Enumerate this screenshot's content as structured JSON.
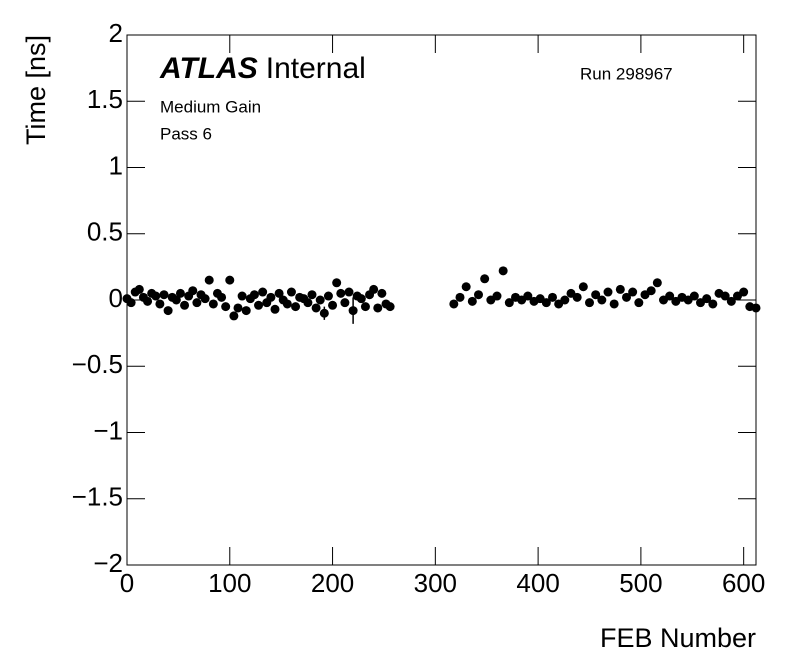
{
  "chart_data": {
    "type": "scatter",
    "title": "ATLAS",
    "subtitle": "Internal",
    "annotations": [
      "Run 298967",
      "Medium Gain",
      "Pass 6"
    ],
    "xlabel": "FEB Number",
    "ylabel": "Time [ns]",
    "color": "#000000",
    "xlim": [
      0,
      612
    ],
    "ylim": [
      -2,
      2
    ],
    "xticks": [
      0,
      100,
      200,
      300,
      400,
      500,
      600
    ],
    "yticks": [
      {
        "value": -2,
        "label": "−2"
      },
      {
        "value": -1.5,
        "label": "−1.5"
      },
      {
        "value": -1,
        "label": "−1"
      },
      {
        "value": -0.5,
        "label": "−0.5"
      },
      0,
      0.5,
      1,
      1.5,
      2
    ],
    "x": [
      0,
      4,
      8,
      12,
      16,
      20,
      24,
      28,
      32,
      36,
      40,
      44,
      48,
      52,
      56,
      60,
      64,
      68,
      72,
      76,
      80,
      84,
      88,
      92,
      96,
      100,
      104,
      108,
      112,
      116,
      120,
      124,
      128,
      132,
      136,
      140,
      144,
      148,
      152,
      156,
      160,
      164,
      168,
      172,
      176,
      180,
      184,
      188,
      192,
      196,
      200,
      204,
      208,
      212,
      216,
      220,
      224,
      228,
      232,
      236,
      240,
      244,
      248,
      252,
      256,
      318,
      324,
      330,
      336,
      342,
      348,
      354,
      360,
      366,
      372,
      378,
      384,
      390,
      396,
      402,
      408,
      414,
      420,
      426,
      432,
      438,
      444,
      450,
      456,
      462,
      468,
      474,
      480,
      486,
      492,
      498,
      504,
      510,
      516,
      522,
      528,
      534,
      540,
      546,
      552,
      558,
      564,
      570,
      576,
      582,
      588,
      594,
      600,
      606,
      612
    ],
    "values": [
      0.01,
      -0.02,
      0.06,
      0.08,
      0.02,
      -0.01,
      0.05,
      0.03,
      -0.03,
      0.04,
      -0.08,
      0.02,
      0.0,
      0.05,
      -0.04,
      0.03,
      0.07,
      -0.02,
      0.04,
      0.01,
      0.15,
      -0.03,
      0.05,
      0.02,
      -0.05,
      0.15,
      -0.12,
      -0.06,
      0.03,
      -0.08,
      0.01,
      0.04,
      -0.04,
      0.06,
      -0.02,
      0.02,
      -0.07,
      0.05,
      0.0,
      -0.03,
      0.06,
      -0.05,
      0.02,
      0.01,
      -0.02,
      0.04,
      -0.06,
      0.0,
      -0.1,
      0.03,
      -0.04,
      0.13,
      0.05,
      -0.02,
      0.06,
      -0.08,
      0.03,
      0.01,
      -0.05,
      0.04,
      0.08,
      -0.06,
      0.05,
      -0.03,
      -0.05,
      -0.03,
      0.02,
      0.1,
      -0.01,
      0.04,
      0.16,
      0.0,
      0.03,
      0.22,
      -0.02,
      0.02,
      0.0,
      0.03,
      -0.01,
      0.01,
      -0.02,
      0.02,
      -0.03,
      0.0,
      0.05,
      0.02,
      0.1,
      -0.02,
      0.04,
      0.0,
      0.06,
      -0.03,
      0.08,
      0.02,
      0.06,
      -0.02,
      0.04,
      0.07,
      0.13,
      0.0,
      0.03,
      -0.01,
      0.02,
      0.0,
      0.03,
      -0.02,
      0.01,
      -0.03,
      0.05,
      0.03,
      -0.01,
      0.03,
      0.06,
      -0.05,
      -0.06
    ],
    "errors": [
      0.03,
      0.03,
      0.03,
      0.03,
      0.03,
      0.03,
      0.03,
      0.03,
      0.03,
      0.03,
      0.03,
      0.03,
      0.03,
      0.03,
      0.03,
      0.03,
      0.03,
      0.03,
      0.03,
      0.03,
      0.03,
      0.03,
      0.03,
      0.03,
      0.03,
      0.03,
      0.03,
      0.03,
      0.03,
      0.03,
      0.03,
      0.03,
      0.03,
      0.03,
      0.03,
      0.03,
      0.03,
      0.03,
      0.03,
      0.03,
      0.03,
      0.03,
      0.03,
      0.03,
      0.03,
      0.03,
      0.03,
      0.03,
      0.05,
      0.03,
      0.03,
      0.03,
      0.03,
      0.03,
      0.03,
      0.1,
      0.03,
      0.03,
      0.03,
      0.03,
      0.03,
      0.03,
      0.03,
      0.03,
      0.03,
      0.02,
      0.02,
      0.02,
      0.02,
      0.02,
      0.02,
      0.02,
      0.02,
      0.02,
      0.02,
      0.02,
      0.02,
      0.02,
      0.02,
      0.02,
      0.02,
      0.02,
      0.02,
      0.02,
      0.02,
      0.02,
      0.02,
      0.02,
      0.02,
      0.02,
      0.02,
      0.02,
      0.02,
      0.02,
      0.02,
      0.02,
      0.02,
      0.02,
      0.02,
      0.02,
      0.02,
      0.02,
      0.02,
      0.02,
      0.02,
      0.02,
      0.02,
      0.02,
      0.02,
      0.02,
      0.02,
      0.02,
      0.02,
      0.02,
      0.02
    ]
  }
}
